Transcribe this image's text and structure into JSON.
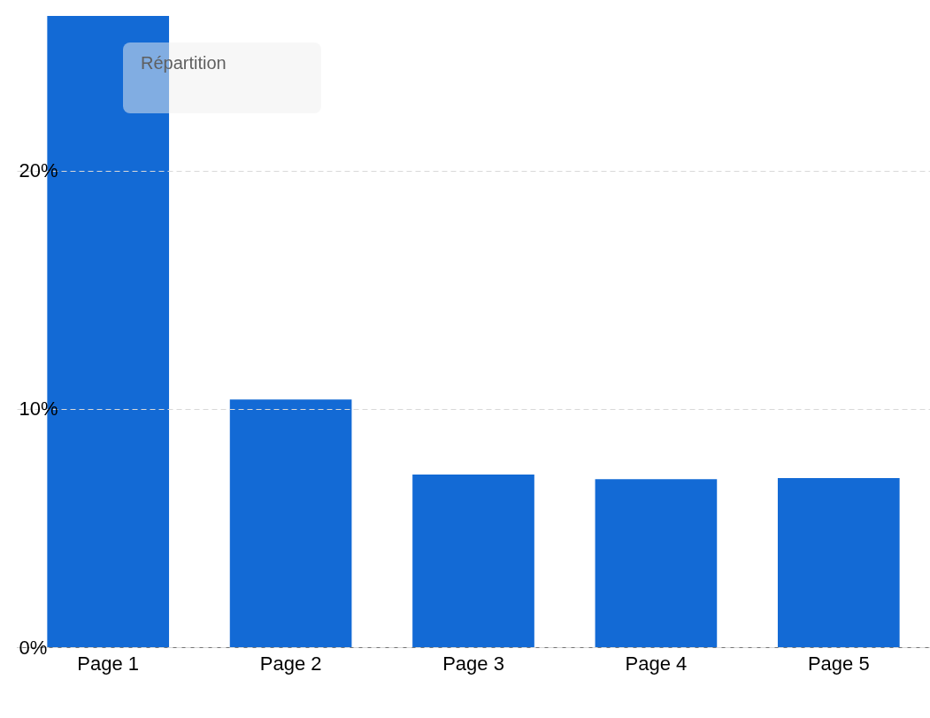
{
  "chart_data": {
    "type": "bar",
    "legend_title": "Répartition",
    "categories": [
      "Page 1",
      "Page 2",
      "Page 3",
      "Page 4",
      "Page 5"
    ],
    "series": [
      {
        "color": "#136ad5",
        "values": [
          26.5,
          10.4,
          7.25,
          7.05,
          7.1
        ]
      }
    ],
    "ylim": [
      0,
      26.5
    ],
    "yticks": [
      {
        "value": 0,
        "label": "0%"
      },
      {
        "value": 10,
        "label": "10%"
      },
      {
        "value": 20,
        "label": "20%"
      }
    ],
    "grid": "y",
    "line_style": "dashed"
  }
}
